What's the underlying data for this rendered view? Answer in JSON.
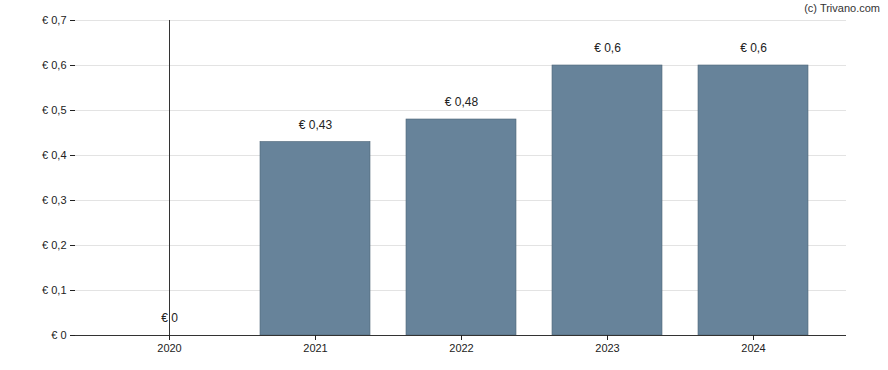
{
  "chart_data": {
    "type": "bar",
    "source": "(c) Trivano.com",
    "categories": [
      "2020",
      "2021",
      "2022",
      "2023",
      "2024"
    ],
    "values": [
      0,
      0.43,
      0.48,
      0.6,
      0.6
    ],
    "value_labels": [
      "€ 0",
      "€ 0,43",
      "€ 0,48",
      "€ 0,6",
      "€ 0,6"
    ],
    "data_labels": true,
    "color": "#67839a",
    "ylim": [
      0,
      0.7
    ],
    "yticks": [
      {
        "value": 0,
        "label": "€ 0"
      },
      {
        "value": 0.1,
        "label": "€ 0,1"
      },
      {
        "value": 0.2,
        "label": "€ 0,2"
      },
      {
        "value": 0.3,
        "label": "€ 0,3"
      },
      {
        "value": 0.4,
        "label": "€ 0,4"
      },
      {
        "value": 0.5,
        "label": "€ 0,5"
      },
      {
        "value": 0.6,
        "label": "€ 0,6"
      },
      {
        "value": 0.7,
        "label": "€ 0,7"
      }
    ],
    "grid": true
  }
}
